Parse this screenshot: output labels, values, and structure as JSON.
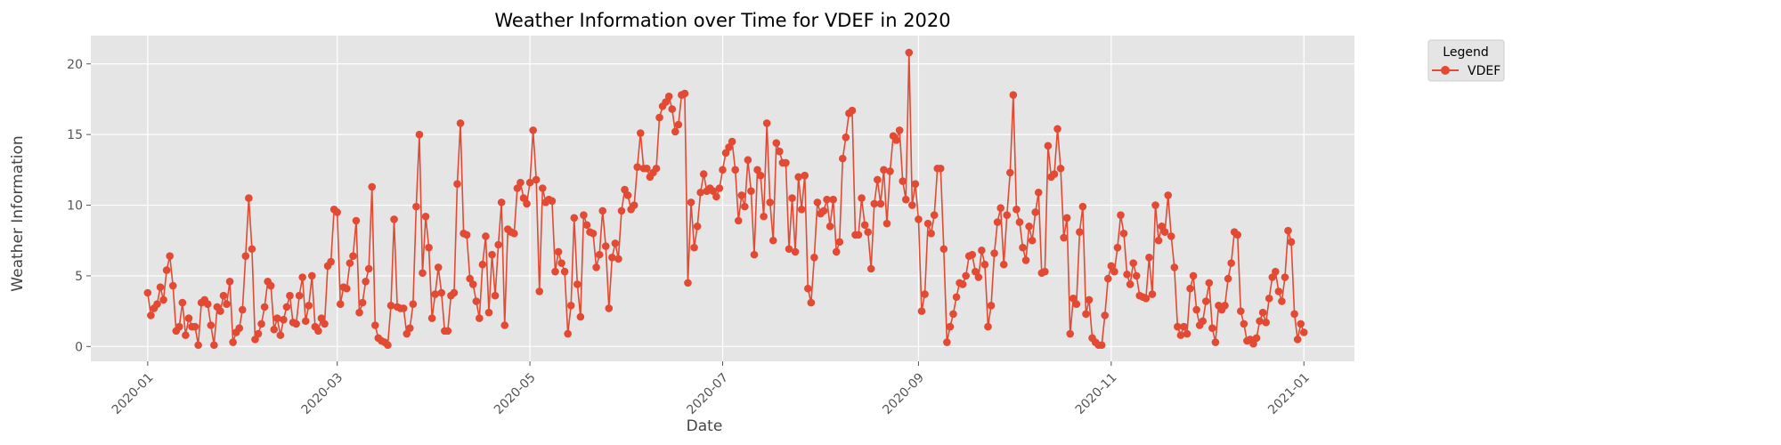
{
  "chart_data": {
    "type": "line",
    "title": "Weather Information over Time for VDEF in 2020",
    "xlabel": "Date",
    "ylabel": "Weather Information",
    "grid": true,
    "legend": {
      "title": "Legend",
      "placement": "outside-top-right"
    },
    "xlim": [
      "2019-12-14",
      "2021-01-17"
    ],
    "ylim": [
      -1.05,
      22.0
    ],
    "x_ticks": [
      "2020-01",
      "2020-03",
      "2020-05",
      "2020-07",
      "2020-09",
      "2020-11",
      "2021-01"
    ],
    "y_ticks": [
      0,
      5,
      10,
      15,
      20
    ],
    "colors": {
      "series": "#E24A33",
      "plot_bg": "#E5E5E5",
      "grid": "#FFFFFF",
      "legend_bg": "#E5E5E5"
    },
    "start_date": "2020-01-01",
    "series": [
      {
        "name": "VDEF",
        "values": [
          3.8,
          2.2,
          2.7,
          3.0,
          4.2,
          3.3,
          5.4,
          6.4,
          4.3,
          1.1,
          1.4,
          3.1,
          0.8,
          2.0,
          1.4,
          1.4,
          0.1,
          3.1,
          3.3,
          3.0,
          1.5,
          0.1,
          2.8,
          2.5,
          3.6,
          3.0,
          4.6,
          0.3,
          1.0,
          1.3,
          2.6,
          6.4,
          10.5,
          6.9,
          0.5,
          0.9,
          1.6,
          2.8,
          4.6,
          4.3,
          1.2,
          2.0,
          0.8,
          1.9,
          2.8,
          3.6,
          1.7,
          1.6,
          3.6,
          4.9,
          1.8,
          2.9,
          5.0,
          1.4,
          1.1,
          2.0,
          1.6,
          5.7,
          6.0,
          9.7,
          9.5,
          3.0,
          4.2,
          4.1,
          5.9,
          6.4,
          8.9,
          2.4,
          3.1,
          4.6,
          5.5,
          11.3,
          1.5,
          0.6,
          0.4,
          0.3,
          0.1,
          2.9,
          9.0,
          2.8,
          2.7,
          2.7,
          0.9,
          1.3,
          3.0,
          9.9,
          15.0,
          5.2,
          9.2,
          7.0,
          2.0,
          3.7,
          5.6,
          3.8,
          1.1,
          1.1,
          3.6,
          3.8,
          11.5,
          15.8,
          8.0,
          7.9,
          4.8,
          4.4,
          3.2,
          2.0,
          5.8,
          7.8,
          2.4,
          6.5,
          3.6,
          7.2,
          10.2,
          1.5,
          8.3,
          8.1,
          8.0,
          11.2,
          11.6,
          10.5,
          10.1,
          11.6,
          15.3,
          11.8,
          3.9,
          11.2,
          10.2,
          10.4,
          10.3,
          5.3,
          6.7,
          5.9,
          5.3,
          0.9,
          2.9,
          9.1,
          4.4,
          2.1,
          9.3,
          8.6,
          8.1,
          8.0,
          5.6,
          6.5,
          9.6,
          7.1,
          2.7,
          6.3,
          7.3,
          6.2,
          9.6,
          11.1,
          10.7,
          9.7,
          10.0,
          12.7,
          15.1,
          12.6,
          12.6,
          12.0,
          12.3,
          12.6,
          16.2,
          17.0,
          17.3,
          17.7,
          16.8,
          15.2,
          15.7,
          17.8,
          17.9,
          4.5,
          10.2,
          7.0,
          8.5,
          10.9,
          12.2,
          11.0,
          11.2,
          11.0,
          10.6,
          11.2,
          12.5,
          13.7,
          14.1,
          14.5,
          12.5,
          8.9,
          10.7,
          9.9,
          13.2,
          11.0,
          6.5,
          12.5,
          12.1,
          9.2,
          15.8,
          10.2,
          7.5,
          14.4,
          13.8,
          13.0,
          13.0,
          6.9,
          10.5,
          6.7,
          12.0,
          9.7,
          12.1,
          4.1,
          3.1,
          6.3,
          10.2,
          9.4,
          9.6,
          10.4,
          8.5,
          10.4,
          6.7,
          7.4,
          13.3,
          14.8,
          16.5,
          16.7,
          7.9,
          7.9,
          10.5,
          8.6,
          8.1,
          5.5,
          10.1,
          11.8,
          10.1,
          12.5,
          8.7,
          12.4,
          14.9,
          14.6,
          15.3,
          11.7,
          10.4,
          20.8,
          10.0,
          11.5,
          9.0,
          2.5,
          3.7,
          8.7,
          8.0,
          9.3,
          12.6,
          12.6,
          6.9,
          0.3,
          1.4,
          2.3,
          3.5,
          4.5,
          4.4,
          5.0,
          6.4,
          6.5,
          5.3,
          4.9,
          6.8,
          5.8,
          1.4,
          2.9,
          6.6,
          8.8,
          9.8,
          5.8,
          9.3,
          12.3,
          17.8,
          9.7,
          8.8,
          7.0,
          6.1,
          8.5,
          7.5,
          9.5,
          10.9,
          5.2,
          5.3,
          14.2,
          12.0,
          12.2,
          15.4,
          12.6,
          7.7,
          9.1,
          0.9,
          3.4,
          3.0,
          8.1,
          9.9,
          2.3,
          3.3,
          0.6,
          0.3,
          0.1,
          0.1,
          2.2,
          4.8,
          5.7,
          5.3,
          7.0,
          9.3,
          8.0,
          5.1,
          4.4,
          5.9,
          5.0,
          3.6,
          3.5,
          3.4,
          6.3,
          3.7,
          10.0,
          7.5,
          8.5,
          8.1,
          10.7,
          7.8,
          5.6,
          1.4,
          0.8,
          1.4,
          0.9,
          4.1,
          5.0,
          2.6,
          1.5,
          1.8,
          3.2,
          4.5,
          1.3,
          0.3,
          2.9,
          2.6,
          2.9,
          4.8,
          5.9,
          8.1,
          7.9,
          2.5,
          1.6,
          0.4,
          0.5,
          0.2,
          0.6,
          1.8,
          2.4,
          1.7,
          3.4,
          4.9,
          5.3,
          3.9,
          3.2,
          4.9,
          8.2,
          7.4,
          2.3,
          0.5,
          1.6,
          1.0
        ]
      }
    ]
  }
}
